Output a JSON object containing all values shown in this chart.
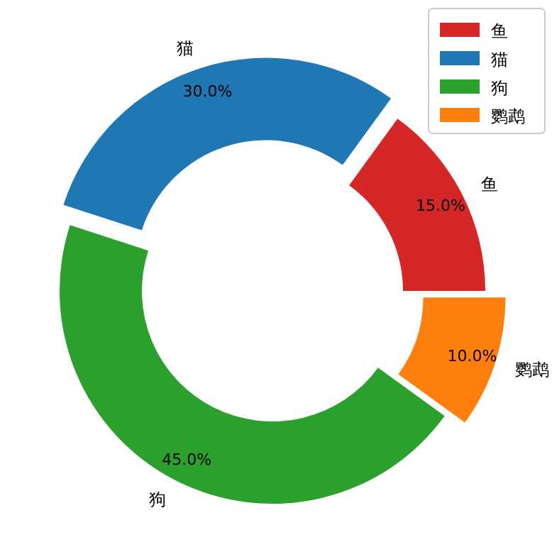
{
  "chart_data": {
    "type": "donut",
    "categories": [
      "鱼",
      "猫",
      "狗",
      "鹦鹉"
    ],
    "values": [
      15,
      30,
      45,
      10
    ],
    "colors": [
      "#d62728",
      "#1f77b4",
      "#2ca02c",
      "#ff7f0e"
    ],
    "value_labels": [
      "15.0%",
      "30.0%",
      "45.0%",
      "10.0%"
    ],
    "legend": "top right"
  }
}
